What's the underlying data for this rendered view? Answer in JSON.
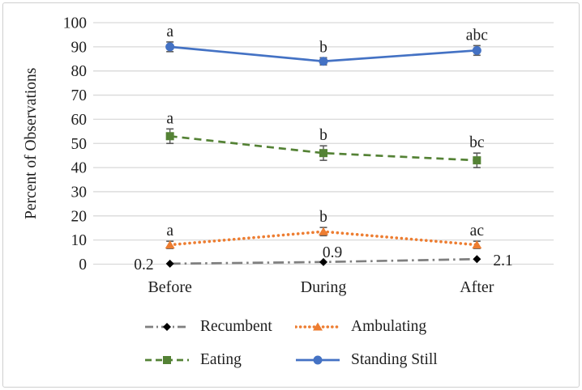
{
  "figure": {
    "background": "#ffffff",
    "border_color": "#cfcfcf",
    "text_color": "#1f1f1f",
    "gridline_color": "#d9d9d9",
    "error_bar_color": "#595959"
  },
  "chart_data": {
    "type": "line",
    "title": "",
    "xlabel": "",
    "ylabel": "Percent of Observations",
    "categories": [
      "Before",
      "During",
      "After"
    ],
    "ylim": [
      0,
      100
    ],
    "yticks": [
      0,
      10,
      20,
      30,
      40,
      50,
      60,
      70,
      80,
      90,
      100
    ],
    "grid": true,
    "legend_position": "bottom",
    "series": [
      {
        "name": "Recumbent",
        "color": "#7f7f7f",
        "marker": "diamond",
        "marker_color": "#000000",
        "line_style": "dash-dot",
        "values": [
          0.2,
          0.9,
          2.1
        ],
        "error": [
          0,
          0,
          0
        ],
        "point_labels": [
          "0.2",
          "0.9",
          "2.1"
        ],
        "label_placement": [
          "left",
          "above-right",
          "right"
        ]
      },
      {
        "name": "Ambulating",
        "color": "#ed7d31",
        "marker": "triangle",
        "marker_color": "#ed7d31",
        "line_style": "dotted",
        "values": [
          8,
          13.5,
          8
        ],
        "error": [
          1.5,
          1.7,
          1.5
        ],
        "point_labels": [
          "a",
          "b",
          "ac"
        ],
        "label_placement": [
          "above",
          "above",
          "above"
        ]
      },
      {
        "name": "Eating",
        "color": "#548235",
        "marker": "square",
        "marker_color": "#548235",
        "line_style": "dashed",
        "values": [
          53,
          46,
          43
        ],
        "error": [
          3,
          3,
          3
        ],
        "point_labels": [
          "a",
          "b",
          "bc"
        ],
        "label_placement": [
          "above",
          "above",
          "above"
        ]
      },
      {
        "name": "Standing Still",
        "color": "#4472c4",
        "marker": "circle",
        "marker_color": "#4472c4",
        "line_style": "solid",
        "values": [
          90,
          84,
          88.5
        ],
        "error": [
          2,
          1.5,
          2
        ],
        "point_labels": [
          "a",
          "b",
          "abc"
        ],
        "label_placement": [
          "above",
          "above",
          "above"
        ]
      }
    ]
  }
}
